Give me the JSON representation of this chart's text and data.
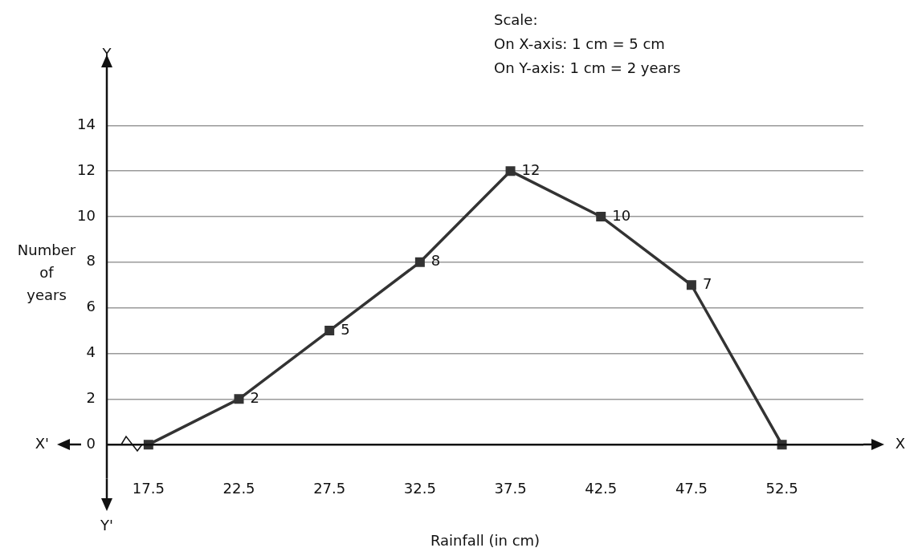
{
  "chart_data": {
    "type": "line",
    "xlabel": "Rainfall (in cm)",
    "ylabel": "Number of years",
    "x": [
      17.5,
      22.5,
      27.5,
      32.5,
      37.5,
      42.5,
      47.5,
      52.5
    ],
    "series": [
      {
        "color": "#333333",
        "values": [
          0,
          2,
          5,
          8,
          12,
          10,
          7,
          0
        ],
        "value_labels": [
          null,
          "2",
          "5",
          "8",
          "12",
          "10",
          "7",
          null
        ]
      }
    ],
    "xlim": [
      15.2,
      57
    ],
    "xticks": [
      17.5,
      22.5,
      27.5,
      32.5,
      37.5,
      42.5,
      47.5,
      52.5
    ],
    "ylim": [
      -1.5,
      15.7
    ],
    "yticks": [
      0,
      2,
      4,
      6,
      8,
      10,
      12,
      14
    ],
    "grid": "y",
    "legend": false,
    "marker": "square",
    "line_style": "solid",
    "annotations": [
      "Scale:",
      "On X-axis: 1 cm = 5 cm",
      "On Y-axis: 1 cm = 2 years",
      "X'",
      "X",
      "Y",
      "Y'"
    ]
  }
}
